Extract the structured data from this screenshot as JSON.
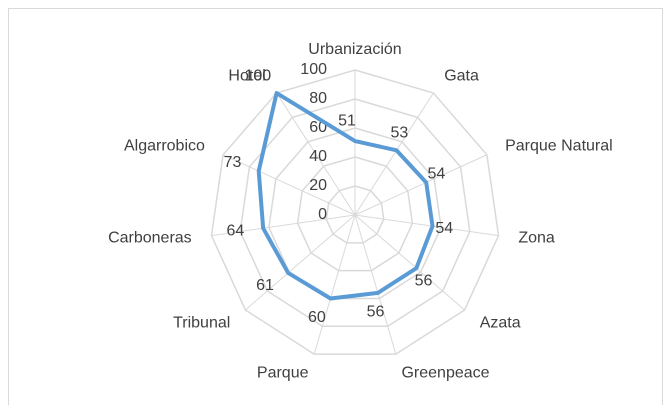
{
  "chart_data": {
    "type": "radar",
    "categories": [
      "Urbanización",
      "Gata",
      "Parque Natural",
      "Zona",
      "Azata",
      "Greenpeace",
      "Parque",
      "Tribunal",
      "Carboneras",
      "Algarrobico",
      "Hotel"
    ],
    "values": [
      51,
      53,
      54,
      54,
      56,
      56,
      60,
      61,
      64,
      73,
      100
    ],
    "color": "#5b9bd5",
    "ylim": [
      0,
      100
    ],
    "yticks": [
      0,
      20,
      40,
      60,
      80,
      100
    ],
    "grid": true
  }
}
